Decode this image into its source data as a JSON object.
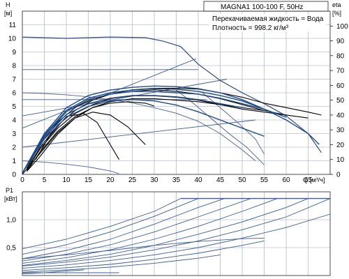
{
  "chart_data": [
    {
      "type": "line",
      "title": "MAGNA1 100-100 F, 50Hz",
      "annotations": [
        "Перекачиваемая жидкость = Вода",
        "Плотность = 998.2 кг/м³"
      ],
      "ylabel_left": [
        "H",
        "[м]"
      ],
      "ylabel_right": [
        "eta",
        "[%]"
      ],
      "xlabel": [
        "Q",
        "[м³/ч]"
      ],
      "xlim": [
        0,
        70
      ],
      "ylim_left": [
        0,
        12
      ],
      "ylim_right": [
        0,
        110
      ],
      "grid": true,
      "x_ticks": [
        "0",
        "5",
        "10",
        "15",
        "20",
        "25",
        "30",
        "35",
        "40",
        "45",
        "50",
        "55",
        "60",
        "65"
      ],
      "y_left_ticks": [
        "0",
        "1",
        "2",
        "3",
        "4",
        "5",
        "6",
        "7",
        "8",
        "9",
        "10",
        "11"
      ],
      "y_right_ticks": [
        "0",
        "10",
        "20",
        "30",
        "40",
        "50",
        "60",
        "70",
        "80",
        "90",
        "100"
      ],
      "series": [
        {
          "role": "max_curve",
          "x": [
            0,
            10,
            20,
            28,
            32,
            36,
            40,
            45,
            50,
            55,
            60,
            65,
            68
          ],
          "y": [
            10.1,
            10.0,
            10.1,
            10.05,
            9.8,
            9.4,
            8.1,
            6.9,
            6.0,
            5.2,
            4.3,
            3.0,
            1.6
          ]
        },
        {
          "role": "const_pressure",
          "x": [
            0,
            39.5
          ],
          "y": [
            3.4,
            8.5
          ]
        },
        {
          "role": "const_pressure",
          "x": [
            0,
            46.5
          ],
          "y": [
            4.3,
            7.0
          ]
        },
        {
          "role": "const_pressure",
          "x": [
            0,
            53
          ],
          "y": [
            2.0,
            4.0
          ]
        },
        {
          "role": "h_level",
          "x": [
            0,
            40
          ],
          "y": [
            7.7,
            7.7
          ]
        },
        {
          "role": "h_level",
          "x": [
            0,
            42
          ],
          "y": [
            5.5,
            5.5
          ]
        },
        {
          "role": "const_curve",
          "x": [
            0,
            5,
            10,
            15,
            20,
            25,
            30,
            35,
            40,
            45,
            50,
            53
          ],
          "y": [
            6.0,
            5.95,
            5.85,
            5.7,
            5.5,
            5.25,
            4.9,
            4.5,
            3.9,
            3.0,
            1.8,
            1.0
          ]
        },
        {
          "role": "const_curve",
          "x": [
            0,
            5,
            10,
            15,
            20,
            22
          ],
          "y": [
            1.0,
            0.9,
            0.75,
            0.55,
            0.25,
            0.05
          ]
        },
        {
          "role": "reduced_curve",
          "x": [
            35,
            39,
            43,
            47,
            51,
            55
          ],
          "y": [
            6.2,
            5.2,
            4.1,
            3.0,
            2.0,
            0.7
          ]
        },
        {
          "role": "reduced_curve",
          "x": [
            41,
            45,
            49,
            53,
            55
          ],
          "y": [
            6.0,
            4.9,
            3.8,
            2.6,
            1.5
          ]
        },
        {
          "role": "eta",
          "x": [
            1,
            4,
            8,
            12,
            16,
            20,
            25,
            30,
            35,
            40,
            45,
            50,
            55,
            60,
            65,
            68
          ],
          "y": [
            4,
            20,
            35,
            45,
            51,
            54,
            57,
            58,
            58,
            57.5,
            55,
            52,
            48,
            45,
            42,
            40
          ]
        },
        {
          "role": "eta",
          "x": [
            1,
            4,
            8,
            12,
            16,
            20,
            25,
            30,
            35,
            40,
            45,
            50,
            55,
            60,
            65
          ],
          "y": [
            3,
            18,
            33,
            43,
            50,
            54,
            56,
            57,
            56,
            54,
            51,
            47,
            43,
            40,
            38
          ]
        },
        {
          "role": "eta",
          "x": [
            1,
            4,
            8,
            12,
            16,
            20,
            25,
            30,
            35,
            40,
            45,
            50,
            55,
            60
          ],
          "y": [
            3,
            17,
            31,
            41,
            47,
            51,
            53,
            53,
            52,
            50,
            47,
            44,
            42,
            40
          ]
        },
        {
          "role": "eta",
          "x": [
            1,
            4,
            8,
            12,
            16,
            20,
            25,
            30,
            35,
            40,
            45,
            50,
            55
          ],
          "y": [
            2,
            15,
            29,
            39,
            45,
            49,
            51,
            51,
            50,
            49,
            47,
            45,
            43
          ]
        },
        {
          "role": "eta",
          "x": [
            1,
            4,
            8,
            12,
            16,
            20,
            24,
            28
          ],
          "y": [
            2,
            12,
            27,
            38,
            42,
            40,
            32,
            20
          ]
        },
        {
          "role": "eta",
          "x": [
            3,
            6,
            10,
            14,
            17,
            20,
            22
          ],
          "y": [
            10,
            25,
            39,
            41,
            35,
            20,
            10
          ]
        },
        {
          "role": "eta_short",
          "x": [
            0,
            4,
            8,
            12,
            16,
            20,
            24,
            28,
            30
          ],
          "y": [
            0,
            14,
            28,
            38,
            45,
            48,
            49,
            48,
            46
          ]
        },
        {
          "role": "qh_max",
          "x": [
            0,
            5,
            10,
            15,
            20,
            25,
            30,
            35,
            40,
            45,
            50,
            55,
            60,
            65,
            67.5
          ],
          "y": [
            0.1,
            3.0,
            4.9,
            5.8,
            6.2,
            6.4,
            6.5,
            6.45,
            6.3,
            6.0,
            5.5,
            4.8,
            4.0,
            3.0,
            2.2
          ]
        },
        {
          "role": "qh",
          "x": [
            0,
            5,
            10,
            15,
            20,
            25,
            30,
            35,
            40,
            45,
            50,
            55,
            60
          ],
          "y": [
            0.1,
            2.9,
            4.7,
            5.6,
            6.0,
            6.2,
            6.3,
            6.25,
            6.1,
            5.8,
            5.4,
            4.8,
            4.2
          ]
        },
        {
          "role": "qh",
          "x": [
            0,
            5,
            10,
            15,
            20,
            25,
            30,
            35,
            40,
            45,
            50,
            55
          ],
          "y": [
            0.1,
            2.8,
            4.6,
            5.5,
            5.9,
            6.1,
            6.1,
            6.0,
            5.9,
            5.6,
            5.2,
            4.8
          ]
        },
        {
          "role": "qh",
          "x": [
            0,
            5,
            10,
            15,
            20,
            25,
            30,
            35,
            40,
            45,
            50
          ],
          "y": [
            0.1,
            2.7,
            4.4,
            5.2,
            5.6,
            5.8,
            5.8,
            5.7,
            5.5,
            5.2,
            4.9
          ]
        },
        {
          "role": "qh",
          "x": [
            0,
            5,
            10,
            15,
            20,
            25,
            30,
            35,
            40,
            45,
            50,
            55
          ],
          "y": [
            0.1,
            2.6,
            4.2,
            5.0,
            5.4,
            5.5,
            5.4,
            5.1,
            4.6,
            4.0,
            3.4,
            2.8
          ]
        }
      ]
    },
    {
      "type": "line",
      "ylabel": [
        "P1",
        "[кВт]"
      ],
      "xlim": [
        0,
        70
      ],
      "ylim": [
        0,
        1.5
      ],
      "grid": true,
      "y_ticks": [
        "0,5",
        "1,0"
      ],
      "series": [
        {
          "x": [
            0,
            10,
            20,
            30,
            36
          ],
          "y": [
            0.48,
            0.65,
            0.88,
            1.15,
            1.38
          ]
        },
        {
          "x": [
            0,
            10,
            20,
            30,
            40
          ],
          "y": [
            0.38,
            0.55,
            0.78,
            1.06,
            1.38
          ]
        },
        {
          "x": [
            0,
            10,
            20,
            30,
            40,
            46
          ],
          "y": [
            0.3,
            0.45,
            0.65,
            0.92,
            1.22,
            1.38
          ]
        },
        {
          "x": [
            0,
            10,
            20,
            30,
            40,
            52
          ],
          "y": [
            0.26,
            0.38,
            0.55,
            0.78,
            1.05,
            1.38
          ]
        },
        {
          "x": [
            0,
            10,
            20,
            30,
            40,
            50,
            58
          ],
          "y": [
            0.22,
            0.32,
            0.46,
            0.65,
            0.88,
            1.15,
            1.38
          ]
        },
        {
          "x": [
            0,
            10,
            20,
            30,
            40,
            50,
            60,
            65
          ],
          "y": [
            0.18,
            0.27,
            0.38,
            0.54,
            0.74,
            0.96,
            1.22,
            1.38
          ]
        },
        {
          "x": [
            0,
            10,
            20,
            30,
            40,
            50,
            60,
            70
          ],
          "y": [
            0.17,
            0.24,
            0.33,
            0.46,
            0.62,
            0.82,
            1.05,
            1.38
          ]
        },
        {
          "x": [
            0,
            10,
            20,
            30,
            40,
            50,
            60,
            70
          ],
          "y": [
            0.13,
            0.19,
            0.27,
            0.37,
            0.5,
            0.67,
            0.86,
            1.1
          ]
        },
        {
          "x": [
            0,
            10,
            20,
            30,
            40,
            50,
            55
          ],
          "y": [
            0.09,
            0.14,
            0.2,
            0.29,
            0.4,
            0.54,
            0.62
          ]
        },
        {
          "x": [
            0,
            10,
            20,
            30,
            40,
            45
          ],
          "y": [
            0.06,
            0.1,
            0.15,
            0.22,
            0.31,
            0.37
          ]
        },
        {
          "x": [
            0,
            5,
            10,
            14
          ],
          "y": [
            0.03,
            0.05,
            0.08,
            0.1
          ]
        },
        {
          "x": [
            0,
            10,
            20,
            30,
            40,
            50,
            55
          ],
          "y": [
            0.3,
            0.37,
            0.45,
            0.54,
            0.61,
            0.66,
            0.67
          ]
        },
        {
          "x": [
            0,
            10,
            20,
            22
          ],
          "y": [
            0.05,
            0.05,
            0.05,
            0.05
          ]
        }
      ],
      "cap": {
        "x": [
          36,
          70
        ],
        "y": 1.38
      }
    }
  ]
}
